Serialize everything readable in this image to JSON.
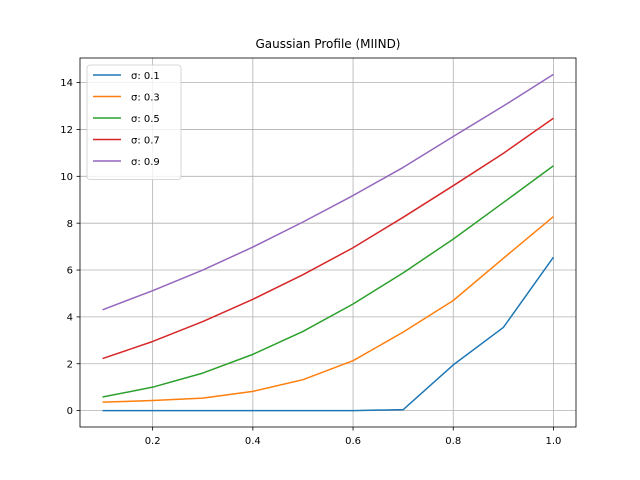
{
  "chart_data": {
    "type": "line",
    "title": "Gaussian Profile (MIIND)",
    "xlabel": "",
    "ylabel": "",
    "xlim": [
      0.055,
      1.045
    ],
    "ylim": [
      -0.7,
      15.05
    ],
    "xticks": [
      0.2,
      0.4,
      0.6,
      0.8,
      1.0
    ],
    "xtick_labels": [
      "0.2",
      "0.4",
      "0.6",
      "0.8",
      "1.0"
    ],
    "yticks": [
      0,
      2,
      4,
      6,
      8,
      10,
      12,
      14
    ],
    "ytick_labels": [
      "0",
      "2",
      "4",
      "6",
      "8",
      "10",
      "12",
      "14"
    ],
    "grid": true,
    "legend_position": "top-left",
    "x": [
      0.1,
      0.2,
      0.3,
      0.4,
      0.5,
      0.6,
      0.7,
      0.8,
      0.9,
      1.0
    ],
    "series": [
      {
        "name": "σ: 0.1",
        "color": "#1f77b4",
        "values": [
          0.0,
          0.0,
          0.0,
          0.0,
          0.0,
          0.0,
          0.04,
          1.95,
          3.55,
          6.55
        ]
      },
      {
        "name": "σ: 0.3",
        "color": "#ff7f0e",
        "values": [
          0.36,
          0.43,
          0.53,
          0.82,
          1.32,
          2.13,
          3.35,
          4.7,
          6.5,
          8.28
        ]
      },
      {
        "name": "σ: 0.5",
        "color": "#2ca02c",
        "values": [
          0.58,
          1.0,
          1.6,
          2.4,
          3.38,
          4.55,
          5.88,
          7.32,
          8.88,
          10.45
        ]
      },
      {
        "name": "σ: 0.7",
        "color": "#d62728",
        "values": [
          2.22,
          2.95,
          3.8,
          4.75,
          5.8,
          6.95,
          8.25,
          9.6,
          10.98,
          12.48
        ]
      },
      {
        "name": "σ: 0.9",
        "color": "#9467bd",
        "values": [
          4.3,
          5.12,
          6.0,
          6.98,
          8.05,
          9.18,
          10.38,
          11.7,
          13.0,
          14.35
        ]
      }
    ]
  }
}
